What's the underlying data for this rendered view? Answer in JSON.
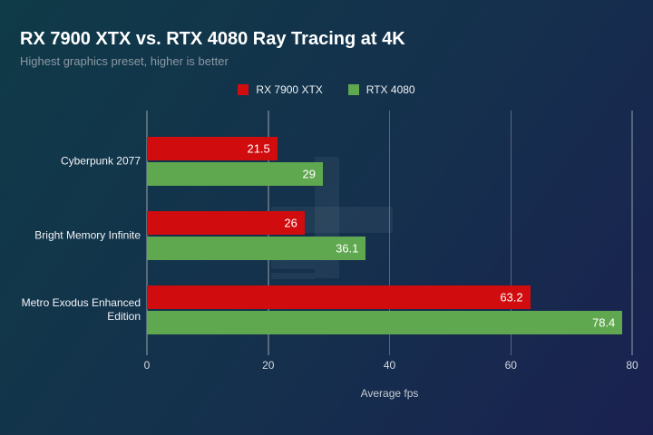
{
  "theme": {
    "background_start": "#0f3a48",
    "background_mid": "#15304d",
    "background_end": "#1a2150",
    "grid_color": "rgba(255,255,255,0.28)",
    "title_color": "#ffffff",
    "subtitle_color": "#8c98a4"
  },
  "chart_data": {
    "type": "bar",
    "orientation": "horizontal",
    "title": "RX 7900 XTX vs. RTX 4080 Ray Tracing at 4K",
    "subtitle": "Highest graphics preset, higher is better",
    "categories": [
      "Cyberpunk 2077",
      "Bright Memory Infinite",
      "Metro Exodus Enhanced Edition"
    ],
    "series": [
      {
        "name": "RX 7900 XTX",
        "color": "#d00c0f",
        "values": [
          21.5,
          26,
          63.2
        ]
      },
      {
        "name": "RTX 4080",
        "color": "#60a84f",
        "values": [
          29,
          36.1,
          78.4
        ]
      }
    ],
    "xlabel": "Average fps",
    "xlim": [
      0,
      80
    ],
    "xticks": [
      0,
      20,
      40,
      60,
      80
    ],
    "value_labels": true,
    "legend_position": "top-center",
    "grid": "vertical"
  }
}
